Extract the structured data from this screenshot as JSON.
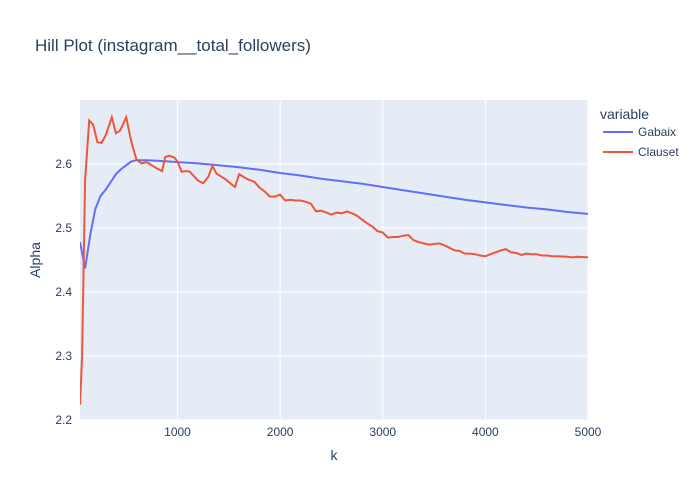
{
  "chart_data": {
    "type": "line",
    "title": "Hill Plot (instagram__total_followers)",
    "xlabel": "k",
    "ylabel": "Alpha",
    "xlim": [
      50,
      5000
    ],
    "ylim": [
      2.2,
      2.7
    ],
    "xticks": [
      1000,
      2000,
      3000,
      4000,
      5000
    ],
    "xtick_labels": [
      "1000",
      "2000",
      "3000",
      "4000",
      "5000"
    ],
    "yticks": [
      2.2,
      2.3,
      2.4,
      2.5,
      2.6
    ],
    "ytick_labels": [
      "2.2",
      "2.3",
      "2.4",
      "2.5",
      "2.6"
    ],
    "grid": true,
    "legend_title": "variable",
    "legend_position": "top-right-outside",
    "series": [
      {
        "name": "Gabaix",
        "color": "#636efa",
        "points": [
          [
            50,
            2.478
          ],
          [
            100,
            2.437
          ],
          [
            150,
            2.49
          ],
          [
            200,
            2.53
          ],
          [
            250,
            2.55
          ],
          [
            300,
            2.56
          ],
          [
            350,
            2.572
          ],
          [
            400,
            2.584
          ],
          [
            450,
            2.592
          ],
          [
            500,
            2.598
          ],
          [
            550,
            2.604
          ],
          [
            600,
            2.606
          ],
          [
            700,
            2.606
          ],
          [
            800,
            2.605
          ],
          [
            900,
            2.604
          ],
          [
            1000,
            2.603
          ],
          [
            1200,
            2.601
          ],
          [
            1400,
            2.598
          ],
          [
            1600,
            2.595
          ],
          [
            1800,
            2.591
          ],
          [
            2000,
            2.586
          ],
          [
            2200,
            2.582
          ],
          [
            2400,
            2.577
          ],
          [
            2600,
            2.573
          ],
          [
            2800,
            2.569
          ],
          [
            3000,
            2.564
          ],
          [
            3200,
            2.559
          ],
          [
            3400,
            2.554
          ],
          [
            3600,
            2.549
          ],
          [
            3800,
            2.544
          ],
          [
            4000,
            2.54
          ],
          [
            4200,
            2.536
          ],
          [
            4400,
            2.532
          ],
          [
            4600,
            2.529
          ],
          [
            4800,
            2.525
          ],
          [
            5000,
            2.522
          ]
        ]
      },
      {
        "name": "Clauset",
        "color": "#ef553b",
        "points": [
          [
            50,
            2.224
          ],
          [
            70,
            2.3
          ],
          [
            100,
            2.575
          ],
          [
            140,
            2.668
          ],
          [
            180,
            2.661
          ],
          [
            220,
            2.634
          ],
          [
            260,
            2.633
          ],
          [
            300,
            2.645
          ],
          [
            360,
            2.673
          ],
          [
            400,
            2.648
          ],
          [
            440,
            2.652
          ],
          [
            500,
            2.673
          ],
          [
            550,
            2.635
          ],
          [
            600,
            2.607
          ],
          [
            650,
            2.601
          ],
          [
            700,
            2.603
          ],
          [
            750,
            2.598
          ],
          [
            800,
            2.593
          ],
          [
            850,
            2.589
          ],
          [
            880,
            2.611
          ],
          [
            920,
            2.613
          ],
          [
            970,
            2.61
          ],
          [
            1000,
            2.604
          ],
          [
            1040,
            2.588
          ],
          [
            1080,
            2.589
          ],
          [
            1120,
            2.588
          ],
          [
            1160,
            2.581
          ],
          [
            1200,
            2.574
          ],
          [
            1250,
            2.57
          ],
          [
            1300,
            2.58
          ],
          [
            1340,
            2.597
          ],
          [
            1380,
            2.585
          ],
          [
            1420,
            2.581
          ],
          [
            1470,
            2.576
          ],
          [
            1520,
            2.569
          ],
          [
            1560,
            2.564
          ],
          [
            1600,
            2.584
          ],
          [
            1650,
            2.579
          ],
          [
            1700,
            2.575
          ],
          [
            1750,
            2.572
          ],
          [
            1800,
            2.563
          ],
          [
            1850,
            2.557
          ],
          [
            1900,
            2.549
          ],
          [
            1950,
            2.549
          ],
          [
            2000,
            2.552
          ],
          [
            2050,
            2.543
          ],
          [
            2100,
            2.544
          ],
          [
            2150,
            2.543
          ],
          [
            2200,
            2.543
          ],
          [
            2250,
            2.541
          ],
          [
            2300,
            2.538
          ],
          [
            2350,
            2.526
          ],
          [
            2400,
            2.527
          ],
          [
            2450,
            2.524
          ],
          [
            2500,
            2.521
          ],
          [
            2550,
            2.524
          ],
          [
            2600,
            2.523
          ],
          [
            2650,
            2.526
          ],
          [
            2700,
            2.523
          ],
          [
            2750,
            2.519
          ],
          [
            2800,
            2.513
          ],
          [
            2850,
            2.507
          ],
          [
            2900,
            2.502
          ],
          [
            2950,
            2.495
          ],
          [
            3000,
            2.493
          ],
          [
            3050,
            2.485
          ],
          [
            3100,
            2.486
          ],
          [
            3150,
            2.486
          ],
          [
            3200,
            2.488
          ],
          [
            3250,
            2.489
          ],
          [
            3300,
            2.481
          ],
          [
            3350,
            2.478
          ],
          [
            3400,
            2.476
          ],
          [
            3450,
            2.474
          ],
          [
            3500,
            2.475
          ],
          [
            3550,
            2.476
          ],
          [
            3600,
            2.473
          ],
          [
            3650,
            2.469
          ],
          [
            3700,
            2.465
          ],
          [
            3750,
            2.464
          ],
          [
            3800,
            2.46
          ],
          [
            3850,
            2.46
          ],
          [
            3900,
            2.459
          ],
          [
            3950,
            2.457
          ],
          [
            4000,
            2.456
          ],
          [
            4050,
            2.459
          ],
          [
            4100,
            2.462
          ],
          [
            4150,
            2.465
          ],
          [
            4200,
            2.467
          ],
          [
            4250,
            2.462
          ],
          [
            4300,
            2.461
          ],
          [
            4350,
            2.458
          ],
          [
            4400,
            2.46
          ],
          [
            4450,
            2.459
          ],
          [
            4500,
            2.459
          ],
          [
            4550,
            2.457
          ],
          [
            4600,
            2.457
          ],
          [
            4650,
            2.456
          ],
          [
            4700,
            2.456
          ],
          [
            4800,
            2.455
          ],
          [
            4850,
            2.454
          ],
          [
            4900,
            2.455
          ],
          [
            5000,
            2.454
          ]
        ]
      }
    ]
  }
}
